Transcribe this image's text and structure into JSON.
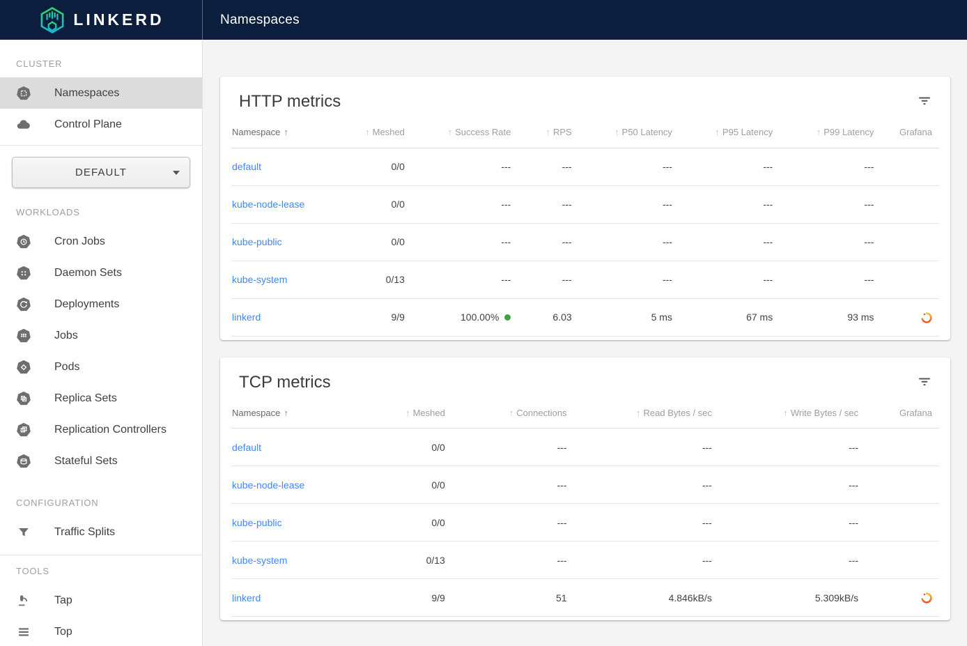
{
  "app": {
    "brand": "LINKERD",
    "page_title": "Namespaces"
  },
  "colors": {
    "topbar_bg": "#0b1e3e",
    "link_blue": "#3f87f5",
    "success_green": "#43a047",
    "grafana_orange": "#f4511e",
    "sidebar_selected_bg": "#dcdcdc",
    "logo_gradient_top": "#2fd56d",
    "logo_gradient_bottom": "#19b5d4"
  },
  "sidebar": {
    "selector": {
      "value": "DEFAULT"
    },
    "sections": [
      {
        "label": "CLUSTER",
        "items": [
          {
            "label": "Namespaces",
            "icon": "namespaces-icon",
            "selected": true
          },
          {
            "label": "Control Plane",
            "icon": "control-plane-icon",
            "selected": false
          }
        ]
      },
      {
        "label": "WORKLOADS",
        "items": [
          {
            "label": "Cron Jobs",
            "icon": "cron-jobs-icon"
          },
          {
            "label": "Daemon Sets",
            "icon": "daemon-sets-icon"
          },
          {
            "label": "Deployments",
            "icon": "deployments-icon"
          },
          {
            "label": "Jobs",
            "icon": "jobs-icon"
          },
          {
            "label": "Pods",
            "icon": "pods-icon"
          },
          {
            "label": "Replica Sets",
            "icon": "replica-sets-icon"
          },
          {
            "label": "Replication Controllers",
            "icon": "replication-controllers-icon"
          },
          {
            "label": "Stateful Sets",
            "icon": "stateful-sets-icon"
          }
        ]
      },
      {
        "label": "CONFIGURATION",
        "items": [
          {
            "label": "Traffic Splits",
            "icon": "traffic-splits-icon"
          }
        ]
      },
      {
        "label": "TOOLS",
        "items": [
          {
            "label": "Tap",
            "icon": "tap-icon"
          },
          {
            "label": "Top",
            "icon": "top-icon"
          }
        ]
      }
    ]
  },
  "tables": {
    "http": {
      "title": "HTTP metrics",
      "columns": [
        {
          "label": "Namespace",
          "sort": "active"
        },
        {
          "label": "Meshed",
          "sort": "inactive"
        },
        {
          "label": "Success Rate",
          "sort": "inactive"
        },
        {
          "label": "RPS",
          "sort": "inactive"
        },
        {
          "label": "P50 Latency",
          "sort": "inactive"
        },
        {
          "label": "P95 Latency",
          "sort": "inactive"
        },
        {
          "label": "P99 Latency",
          "sort": "inactive"
        },
        {
          "label": "Grafana",
          "sort": "none"
        }
      ],
      "rows": [
        {
          "namespace": "default",
          "cells": [
            "0/0",
            "---",
            "---",
            "---",
            "---",
            "---"
          ],
          "grafana": false
        },
        {
          "namespace": "kube-node-lease",
          "cells": [
            "0/0",
            "---",
            "---",
            "---",
            "---",
            "---"
          ],
          "grafana": false
        },
        {
          "namespace": "kube-public",
          "cells": [
            "0/0",
            "---",
            "---",
            "---",
            "---",
            "---"
          ],
          "grafana": false
        },
        {
          "namespace": "kube-system",
          "cells": [
            "0/13",
            "---",
            "---",
            "---",
            "---",
            "---"
          ],
          "grafana": false
        },
        {
          "namespace": "linkerd",
          "cells": [
            "9/9",
            {
              "text": "100.00%",
              "dot": true
            },
            "6.03",
            "5 ms",
            "67 ms",
            "93 ms"
          ],
          "grafana": true
        }
      ]
    },
    "tcp": {
      "title": "TCP metrics",
      "columns": [
        {
          "label": "Namespace",
          "sort": "active"
        },
        {
          "label": "Meshed",
          "sort": "inactive"
        },
        {
          "label": "Connections",
          "sort": "inactive"
        },
        {
          "label": "Read Bytes / sec",
          "sort": "inactive"
        },
        {
          "label": "Write Bytes / sec",
          "sort": "inactive"
        },
        {
          "label": "Grafana",
          "sort": "none"
        }
      ],
      "rows": [
        {
          "namespace": "default",
          "cells": [
            "0/0",
            "---",
            "---",
            "---"
          ],
          "grafana": false
        },
        {
          "namespace": "kube-node-lease",
          "cells": [
            "0/0",
            "---",
            "---",
            "---"
          ],
          "grafana": false
        },
        {
          "namespace": "kube-public",
          "cells": [
            "0/0",
            "---",
            "---",
            "---"
          ],
          "grafana": false
        },
        {
          "namespace": "kube-system",
          "cells": [
            "0/13",
            "---",
            "---",
            "---"
          ],
          "grafana": false
        },
        {
          "namespace": "linkerd",
          "cells": [
            "9/9",
            "51",
            "4.846kB/s",
            "5.309kB/s"
          ],
          "grafana": true
        }
      ]
    }
  }
}
